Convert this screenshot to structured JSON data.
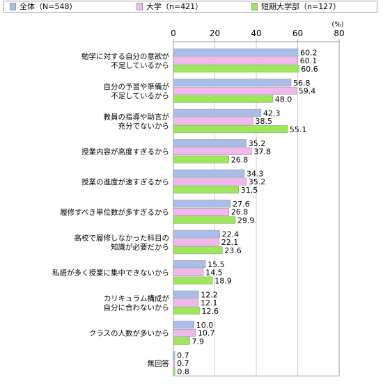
{
  "chart_data": {
    "type": "bar",
    "orientation": "horizontal",
    "unit_label": "(%)",
    "xlim": [
      0,
      80
    ],
    "ticks": [
      0,
      20,
      40,
      60,
      80
    ],
    "grid": true,
    "legend_position": "top",
    "categories": [
      "勉学に対する自分の意欲が\n不足しているから",
      "自分の予習や準備が\n不足しているから",
      "教員の指導や助言が\n充分でないから",
      "授業内容が高度すぎるから",
      "授業の進度が速すぎるから",
      "履修すべき単位数が多すぎるから",
      "高校で履修しなかった科目の\n知識が必要だから",
      "私語が多く授業に集中できないから",
      "カリキュラム構成が\n自分に合わないから",
      "クラスの人数が多いから",
      "無回答"
    ],
    "series": [
      {
        "name": "全体（N=548）",
        "color": "#a9bde8",
        "values": [
          60.2,
          56.8,
          42.3,
          35.2,
          34.3,
          27.6,
          22.4,
          15.5,
          12.2,
          10.0,
          0.7
        ]
      },
      {
        "name": "大学（n=421）",
        "color": "#f0b8ec",
        "values": [
          60.1,
          59.4,
          38.5,
          37.8,
          35.2,
          26.8,
          22.1,
          14.5,
          12.1,
          10.7,
          0.7
        ]
      },
      {
        "name": "短期大学部（n=127）",
        "color": "#9ee65a",
        "values": [
          60.6,
          48.0,
          55.1,
          26.8,
          31.5,
          29.9,
          23.6,
          18.9,
          12.6,
          7.9,
          0.8
        ]
      }
    ]
  }
}
